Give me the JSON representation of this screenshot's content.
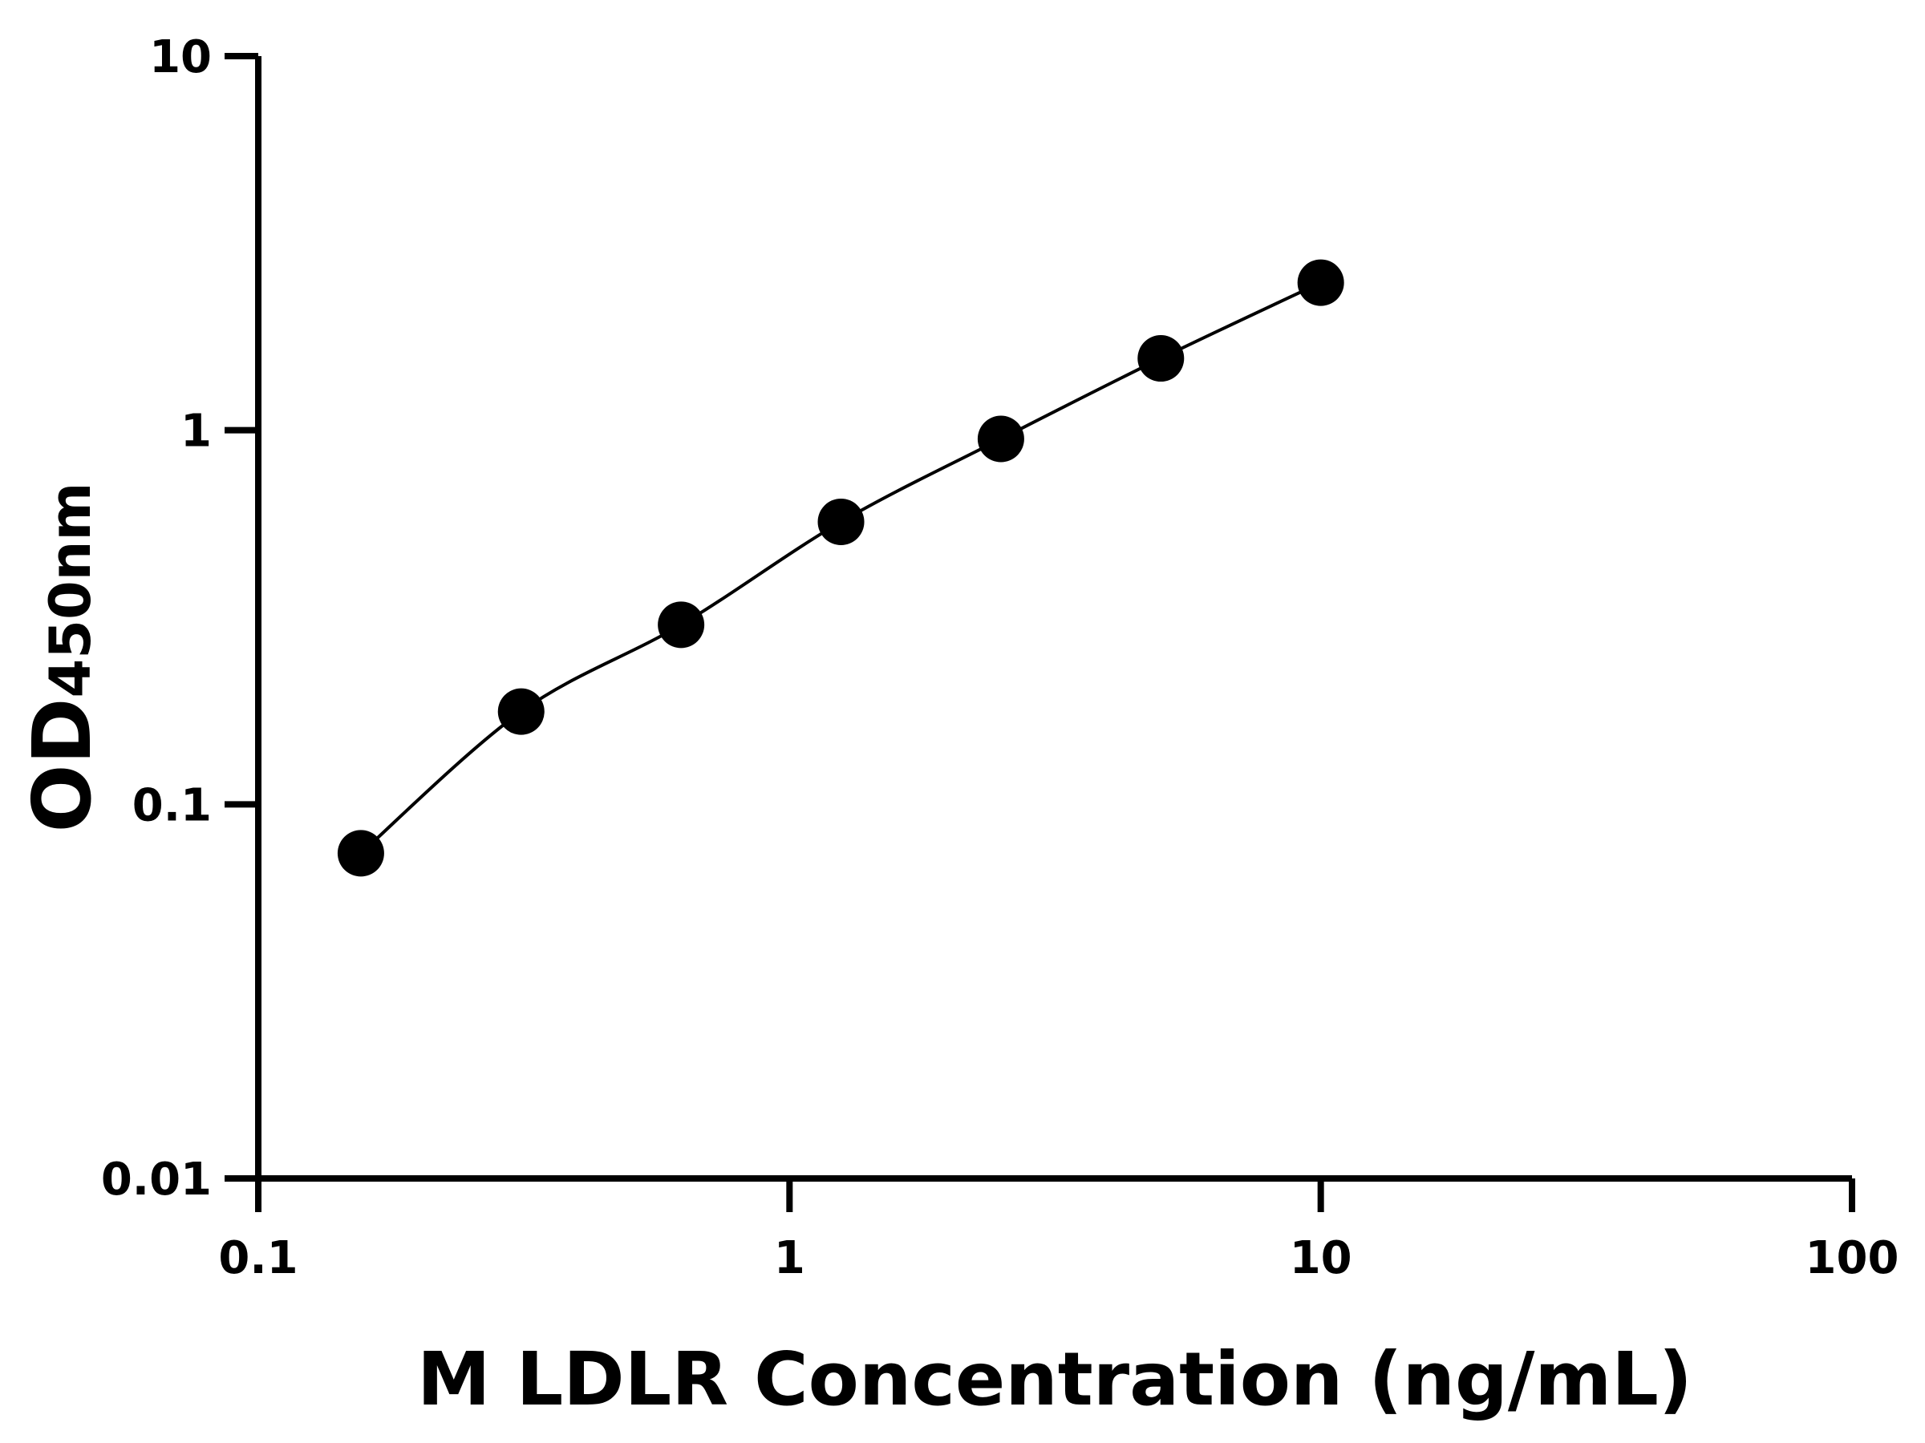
{
  "chart_data": {
    "type": "scatter",
    "title": "",
    "xlabel": "M LDLR Concentration (ng/mL)",
    "ylabel": "OD",
    "ylabel_subscript": "450nm",
    "xscale": "log",
    "yscale": "log",
    "xlim": [
      0.1,
      100
    ],
    "ylim": [
      0.01,
      10
    ],
    "xticks": [
      0.1,
      1,
      10,
      100
    ],
    "xtick_labels": [
      "0.1",
      "1",
      "10",
      "100"
    ],
    "yticks": [
      0.01,
      0.1,
      1,
      10
    ],
    "ytick_labels": [
      "0.01",
      "0.1",
      "1",
      "10"
    ],
    "grid": false,
    "fit_curve": true,
    "series": [
      {
        "x": [
          0.156,
          0.3125,
          0.625,
          1.25,
          2.5,
          5,
          10
        ],
        "y": [
          0.074,
          0.177,
          0.302,
          0.569,
          0.948,
          1.556,
          2.48
        ]
      }
    ],
    "color": "#000000"
  }
}
